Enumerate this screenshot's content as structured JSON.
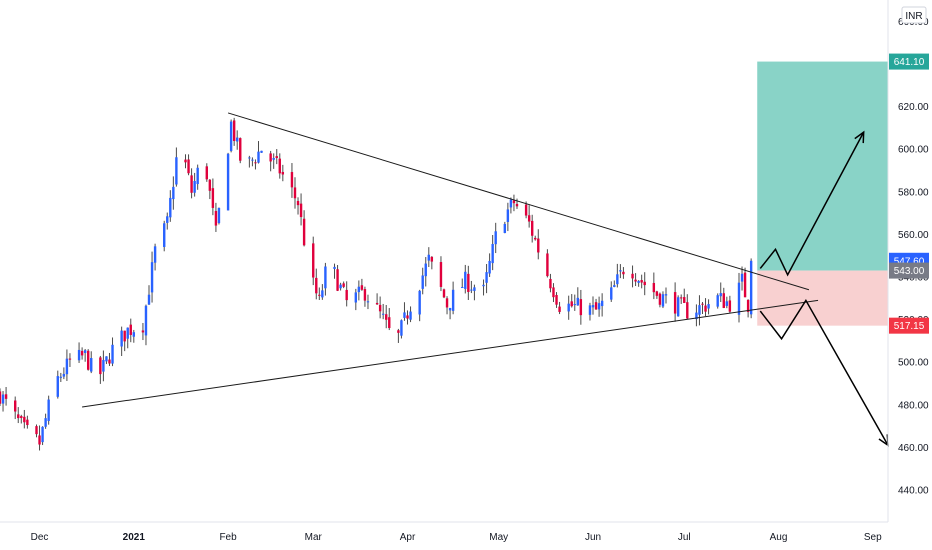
{
  "chart_data": {
    "type": "candlestick",
    "currency_label": "INR",
    "y_axis": {
      "min": 425,
      "max": 670,
      "ticks": [
        440,
        460,
        480,
        500,
        520,
        540,
        560,
        580,
        600,
        620,
        640,
        660
      ],
      "tick_labels": [
        "440.00",
        "460.00",
        "480.00",
        "500.00",
        "520.00",
        "540.00",
        "560.00",
        "580.00",
        "600.00",
        "620.00",
        "640.00",
        "660.00"
      ]
    },
    "x_axis": {
      "start": "2020-11-18",
      "end": "2021-09-06",
      "labels": [
        {
          "text": "Dec",
          "date": "2020-12-01"
        },
        {
          "text": "2021",
          "date": "2021-01-01"
        },
        {
          "text": "Feb",
          "date": "2021-02-01"
        },
        {
          "text": "Mar",
          "date": "2021-03-01"
        },
        {
          "text": "Apr",
          "date": "2021-04-01"
        },
        {
          "text": "May",
          "date": "2021-05-01"
        },
        {
          "text": "Jun",
          "date": "2021-06-01"
        },
        {
          "text": "Jul",
          "date": "2021-07-01"
        },
        {
          "text": "Aug",
          "date": "2021-08-01"
        },
        {
          "text": "Sep",
          "date": "2021-09-01"
        }
      ]
    },
    "price_path": {
      "start_date": "2020-11-18",
      "end_date": "2021-07-23",
      "waypoints": [
        [
          "2020-11-18",
          485
        ],
        [
          "2020-11-22",
          476
        ],
        [
          "2020-11-26",
          468
        ],
        [
          "2020-12-01",
          462
        ],
        [
          "2020-12-06",
          490
        ],
        [
          "2020-12-11",
          500
        ],
        [
          "2020-12-16",
          503
        ],
        [
          "2020-12-20",
          492
        ],
        [
          "2020-12-25",
          506
        ],
        [
          "2020-12-30",
          515
        ],
        [
          "2021-01-04",
          518
        ],
        [
          "2021-01-08",
          552
        ],
        [
          "2021-01-12",
          565
        ],
        [
          "2021-01-16",
          605
        ],
        [
          "2021-01-20",
          580
        ],
        [
          "2021-01-24",
          598
        ],
        [
          "2021-01-28",
          560
        ],
        [
          "2021-02-02",
          612
        ],
        [
          "2021-02-06",
          590
        ],
        [
          "2021-02-12",
          600
        ],
        [
          "2021-02-18",
          590
        ],
        [
          "2021-02-24",
          575
        ],
        [
          "2021-02-28",
          540
        ],
        [
          "2021-03-03",
          528
        ],
        [
          "2021-03-06",
          548
        ],
        [
          "2021-03-12",
          528
        ],
        [
          "2021-03-18",
          533
        ],
        [
          "2021-03-24",
          520
        ],
        [
          "2021-03-28",
          508
        ],
        [
          "2021-04-02",
          527
        ],
        [
          "2021-04-08",
          548
        ],
        [
          "2021-04-14",
          527
        ],
        [
          "2021-04-20",
          538
        ],
        [
          "2021-04-26",
          533
        ],
        [
          "2021-05-01",
          565
        ],
        [
          "2021-05-06",
          575
        ],
        [
          "2021-05-11",
          565
        ],
        [
          "2021-05-16",
          545
        ],
        [
          "2021-05-21",
          527
        ],
        [
          "2021-05-27",
          526
        ],
        [
          "2021-06-02",
          524
        ],
        [
          "2021-06-07",
          532
        ],
        [
          "2021-06-12",
          547
        ],
        [
          "2021-06-17",
          538
        ],
        [
          "2021-06-22",
          532
        ],
        [
          "2021-06-27",
          528
        ],
        [
          "2021-07-02",
          524
        ],
        [
          "2021-07-07",
          526
        ],
        [
          "2021-07-12",
          530
        ],
        [
          "2021-07-17",
          527
        ],
        [
          "2021-07-20",
          538
        ],
        [
          "2021-07-22",
          527
        ],
        [
          "2021-07-23",
          547
        ]
      ]
    },
    "last_price": 547.6,
    "price_tags": [
      {
        "text": "641.10",
        "value": 641.1,
        "color": "#26a69a"
      },
      {
        "text": "547.60",
        "value": 547.6,
        "color": "#2962ff"
      },
      {
        "text": "543.00",
        "value": 543.0,
        "color": "#787b86"
      },
      {
        "text": "517.15",
        "value": 517.15,
        "color": "#f23645"
      }
    ],
    "trendlines": [
      {
        "from": [
          "2021-02-01",
          617
        ],
        "to": [
          "2021-08-11",
          534
        ],
        "role": "upper"
      },
      {
        "from": [
          "2020-12-15",
          479
        ],
        "to": [
          "2021-08-14",
          529
        ],
        "role": "lower"
      }
    ],
    "target_zone": {
      "from_date": "2021-07-25",
      "to_date": "2021-09-06",
      "top": 641.1,
      "mid": 543.0,
      "bottom": 517.15
    },
    "scenario_paths": [
      {
        "points": [
          [
            "2021-07-26",
            544
          ],
          [
            "2021-07-31",
            553
          ],
          [
            "2021-08-04",
            541
          ],
          [
            "2021-08-29",
            608
          ]
        ],
        "arrow": true
      },
      {
        "points": [
          [
            "2021-07-26",
            524
          ],
          [
            "2021-08-02",
            511
          ],
          [
            "2021-08-10",
            529
          ],
          [
            "2021-09-06",
            461
          ]
        ],
        "arrow": true
      }
    ],
    "colors": {
      "up": "#2962ff",
      "down": "#e0003c",
      "wick": "#4a4a4a",
      "trendline": "#1a1a1a",
      "profit_zone": "#89d3c7",
      "loss_zone": "#f8d0d0",
      "axis_line": "#e0e3eb"
    }
  }
}
